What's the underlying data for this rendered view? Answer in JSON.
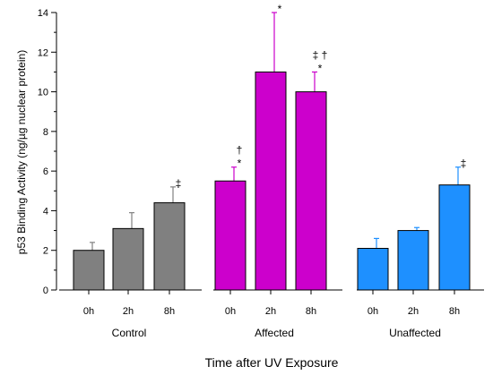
{
  "chart_data": {
    "type": "bar",
    "ylabel": "p53 Binding Activity (ng/µg nuclear protein)",
    "xlabel": "Time after UV Exposure",
    "ylim": [
      0,
      14
    ],
    "yticks": [
      "0",
      "2",
      "4",
      "6",
      "8",
      "10",
      "12",
      "14"
    ],
    "groups": [
      {
        "name": "Control",
        "color": "#808080",
        "bars": [
          {
            "label": "0h",
            "value": 2.0,
            "error": 0.4,
            "marker": ""
          },
          {
            "label": "2h",
            "value": 3.1,
            "error": 0.8,
            "marker": ""
          },
          {
            "label": "8h",
            "value": 4.4,
            "error": 0.8,
            "marker": "‡"
          }
        ]
      },
      {
        "name": "Affected",
        "color": "#cc00cc",
        "bars": [
          {
            "label": "0h",
            "value": 5.5,
            "error": 0.7,
            "marker": "†\n*"
          },
          {
            "label": "2h",
            "value": 11.0,
            "error": 3.0,
            "marker": "†\n*"
          },
          {
            "label": "8h",
            "value": 10.0,
            "error": 1.0,
            "marker": "‡ †\n*"
          }
        ]
      },
      {
        "name": "Unaffected",
        "color": "#1e90ff",
        "bars": [
          {
            "label": "0h",
            "value": 2.1,
            "error": 0.5,
            "marker": ""
          },
          {
            "label": "2h",
            "value": 3.0,
            "error": 0.15,
            "marker": ""
          },
          {
            "label": "8h",
            "value": 5.3,
            "error": 0.9,
            "marker": "‡"
          }
        ]
      }
    ]
  }
}
